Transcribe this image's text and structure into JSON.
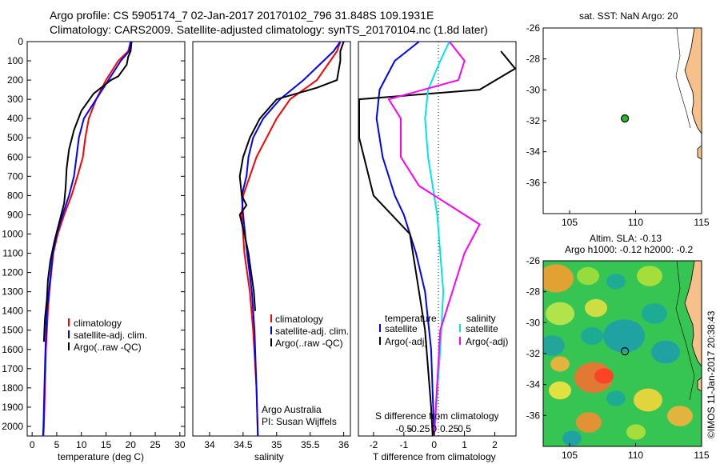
{
  "header": {
    "line1": "Argo profile: CS 5905174_7 02-Jan-2017 20170102_796 31.848S 109.1931E",
    "line2": "Climatology: CARS2009. Satellite-adjusted climatology: synTS_20170104.nc (1.8d later)"
  },
  "side_label": "©IMOS 11-Jan-2017 20:38:43",
  "colors": {
    "climatology": "#ff0000",
    "satellite": "#0000ff",
    "argo": "#000000",
    "salinity_sat": "#00e5e5",
    "salinity_argo": "#ff00ff",
    "land": "#f5c08a",
    "marker": "#22bb22"
  },
  "chart_data": [
    {
      "type": "line",
      "id": "temperature",
      "xlabel": "temperature (deg C)",
      "ylabel": "",
      "xlim": [
        -1,
        31
      ],
      "ylim": [
        2050,
        0
      ],
      "xticks": [
        0,
        5,
        10,
        15,
        20,
        25,
        30
      ],
      "yticks": [
        0,
        100,
        200,
        300,
        400,
        500,
        600,
        700,
        800,
        900,
        1000,
        1100,
        1200,
        1300,
        1400,
        1500,
        1600,
        1700,
        1800,
        1900,
        2000
      ],
      "legend": [
        "climatology",
        "satellite-adj. clim.",
        "Argo(..raw -QC)"
      ],
      "series": [
        {
          "name": "climatology",
          "color": "#ff0000",
          "x": [
            20,
            19.5,
            17.5,
            15,
            13,
            11.5,
            10.8,
            10.3,
            9.2,
            8,
            6.5,
            5.2,
            4.3,
            3.5,
            3.2,
            2.8,
            2.6,
            2.4,
            2.3
          ],
          "y": [
            0,
            50,
            100,
            200,
            300,
            400,
            500,
            600,
            700,
            800,
            900,
            1000,
            1100,
            1300,
            1400,
            1600,
            1800,
            2000,
            2050
          ]
        },
        {
          "name": "satellite-adj. clim.",
          "color": "#0000ff",
          "x": [
            20,
            19.7,
            18,
            15.5,
            13,
            10.5,
            9.5,
            9.0,
            8.5,
            7.5,
            6.2,
            5.0,
            4.2,
            3.4,
            3.0,
            2.7,
            2.5,
            2.3,
            2.2
          ],
          "y": [
            0,
            50,
            100,
            200,
            300,
            400,
            500,
            600,
            700,
            800,
            900,
            1000,
            1100,
            1300,
            1400,
            1600,
            1800,
            2000,
            2050
          ]
        },
        {
          "name": "Argo(..raw -QC)",
          "color": "#000000",
          "x": [
            20.2,
            20,
            19.5,
            19.2,
            17.5,
            16,
            12.5,
            10,
            8.5,
            7.5,
            7.0,
            6.8,
            6.5,
            5.5,
            4.5,
            3.7,
            3.2,
            3.0,
            2.6,
            2.5,
            2.4
          ],
          "y": [
            0,
            50,
            80,
            120,
            180,
            200,
            270,
            360,
            460,
            560,
            660,
            760,
            840,
            940,
            1040,
            1140,
            1240,
            1340,
            1440,
            1500,
            1560
          ]
        }
      ]
    },
    {
      "type": "line",
      "id": "salinity",
      "xlabel": "salinity",
      "ylabel": "",
      "xlim": [
        33.75,
        36.1
      ],
      "ylim": [
        2050,
        0
      ],
      "xticks": [
        34,
        34.5,
        35,
        35.5,
        36
      ],
      "xticklabels": [
        "34",
        "34.5",
        "35",
        "35.5",
        "36"
      ],
      "legend": [
        "climatology",
        "satellite-adj. clim.",
        "Argo(..raw -QC)"
      ],
      "annotations": [
        "Argo Australia",
        "PI: Susan Wijffels"
      ],
      "series": [
        {
          "name": "climatology",
          "color": "#ff0000",
          "x": [
            35.95,
            35.9,
            35.8,
            35.6,
            35.2,
            35.0,
            34.85,
            34.7,
            34.6,
            34.5,
            34.48,
            34.52,
            34.6,
            34.65,
            34.7,
            34.72
          ],
          "y": [
            0,
            50,
            100,
            200,
            300,
            400,
            500,
            600,
            700,
            800,
            900,
            1100,
            1300,
            1500,
            1800,
            2050
          ]
        },
        {
          "name": "satellite-adj. clim.",
          "color": "#0000ff",
          "x": [
            35.95,
            35.85,
            35.7,
            35.4,
            35.05,
            34.8,
            34.65,
            34.58,
            34.55,
            34.48,
            34.5,
            34.56,
            34.63,
            34.67,
            34.7,
            34.72
          ],
          "y": [
            0,
            50,
            100,
            200,
            300,
            400,
            500,
            600,
            700,
            800,
            900,
            1100,
            1300,
            1500,
            1800,
            2050
          ]
        },
        {
          "name": "Argo(..raw -QC)",
          "color": "#000000",
          "x": [
            36.0,
            35.95,
            35.95,
            35.9,
            35.6,
            35.0,
            34.75,
            34.6,
            34.5,
            34.45,
            34.48,
            34.55,
            34.45,
            34.52,
            34.58,
            34.62,
            34.66,
            34.68
          ],
          "y": [
            0,
            50,
            100,
            200,
            240,
            300,
            400,
            500,
            600,
            700,
            800,
            850,
            900,
            1000,
            1100,
            1200,
            1300,
            1400
          ]
        }
      ]
    },
    {
      "type": "line",
      "id": "differences",
      "xlabel": "T difference from climatology",
      "xlabel_top": "S difference from climatology",
      "xlim": [
        -2.5,
        2.7
      ],
      "ylim": [
        2050,
        0
      ],
      "xticks": [
        -2,
        -1,
        0,
        1,
        2
      ],
      "xticklabels": [
        "-2",
        "-1",
        "0",
        "1",
        "2"
      ],
      "s_ticklabels": [
        "-0.5",
        "-0.25",
        "0",
        "0.25",
        "0.5"
      ],
      "legend": [
        "temperature",
        "satellite",
        "Argo(-adj)",
        "salinity",
        "satellite",
        "Argo(-adj)"
      ],
      "series": [
        {
          "name": "satellite",
          "color": "#0000ff",
          "x": [
            -0.5,
            -1.3,
            -1.8,
            -1.9,
            -1.7,
            -1.3,
            -1.0,
            -0.6,
            -0.3,
            -0.1,
            0.0
          ],
          "y": [
            0,
            100,
            250,
            400,
            600,
            800,
            900,
            1100,
            1300,
            1600,
            2050
          ]
        },
        {
          "name": "Argo(-adj)",
          "color": "#000000",
          "x": [
            2.2,
            2.9,
            1.5,
            -2.6,
            -3.0,
            -2.0,
            -0.8,
            -0.5,
            -0.3,
            -0.2,
            -0.1,
            -0.05
          ],
          "y": [
            50,
            140,
            250,
            300,
            500,
            800,
            1000,
            1300,
            1500,
            1700,
            1900,
            2050
          ]
        },
        {
          "name": "satellite",
          "color": "#00e5e5",
          "x": [
            0.5,
            0.2,
            -0.2,
            -0.3,
            -0.2,
            0.0,
            0.1,
            0.2,
            0.3,
            0.2,
            0.0
          ],
          "y": [
            0,
            100,
            250,
            400,
            600,
            800,
            900,
            1100,
            1300,
            1600,
            2050
          ]
        },
        {
          "name": "Argo(-adj)",
          "color": "#ff00ff",
          "x": [
            0.5,
            1.0,
            0.8,
            -1.5,
            -1.1,
            -1.1,
            -0.5,
            0.5,
            1.5,
            1.0,
            0.2,
            0.0
          ],
          "y": [
            0,
            100,
            200,
            300,
            400,
            600,
            750,
            850,
            950,
            1100,
            1500,
            2050
          ]
        }
      ]
    },
    {
      "type": "scatter",
      "id": "sst_map",
      "title": "sat. SST: NaN Argo: 20",
      "xlim": [
        103,
        115
      ],
      "ylim": [
        -38,
        -26
      ],
      "xticks": [
        105,
        110,
        115
      ],
      "yticks": [
        -26,
        -28,
        -30,
        -32,
        -34,
        -36
      ],
      "points": [
        {
          "x": 109.19,
          "y": -31.85
        }
      ]
    },
    {
      "type": "heatmap",
      "id": "sla_map",
      "title": "Altim. SLA: -0.13",
      "subtitle": "Argo h1000: -0.12 h2000: -0.2",
      "xlim": [
        103,
        115
      ],
      "ylim": [
        -38,
        -26
      ],
      "xticks": [
        105,
        110,
        115
      ],
      "yticks": [
        -26,
        -28,
        -30,
        -32,
        -34,
        -36
      ],
      "points": [
        {
          "x": 109.19,
          "y": -31.85
        }
      ]
    }
  ]
}
